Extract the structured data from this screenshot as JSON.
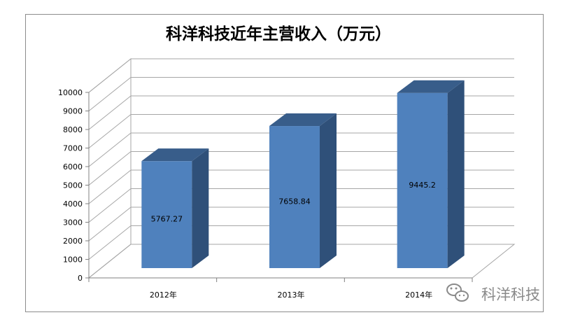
{
  "chart_data": {
    "type": "bar",
    "title": "科洋科技近年主营收入（万元）",
    "categories": [
      "2012年",
      "2013年",
      "2014年"
    ],
    "values": [
      5767.27,
      7658.84,
      9445.2
    ],
    "data_labels": [
      "5767.27",
      "7658.84",
      "9445.2"
    ],
    "ylim": [
      0,
      10000
    ],
    "yticks": [
      0,
      1000,
      2000,
      3000,
      4000,
      5000,
      6000,
      7000,
      8000,
      9000,
      10000
    ],
    "grid": true,
    "legend": "none",
    "style": "3d-column"
  },
  "watermark": {
    "text": "科洋科技",
    "icon": "wechat-icon"
  },
  "colors": {
    "bar_front": "#4f81bd",
    "bar_side": "#2f5079",
    "bar_top": "#385d8a",
    "frame": "#8c8c8c"
  }
}
